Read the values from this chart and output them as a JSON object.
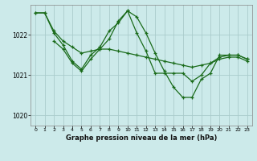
{
  "bg_color": "#cceaea",
  "grid_color": "#aacccc",
  "line_color": "#1a6b1a",
  "marker_color": "#1a6b1a",
  "title": "Graphe pression niveau de la mer (hPa)",
  "xlim": [
    -0.5,
    23.5
  ],
  "ylim": [
    1019.75,
    1022.75
  ],
  "yticks": [
    1020,
    1021,
    1022
  ],
  "xticks": [
    0,
    1,
    2,
    3,
    4,
    5,
    6,
    7,
    8,
    9,
    10,
    11,
    12,
    13,
    14,
    15,
    16,
    17,
    18,
    19,
    20,
    21,
    22,
    23
  ],
  "series": [
    {
      "x": [
        0,
        1,
        2,
        3,
        4,
        5,
        6,
        7,
        8,
        9,
        10,
        11,
        12,
        13,
        14,
        15,
        16,
        17,
        18,
        19,
        20,
        21,
        22,
        23
      ],
      "y": [
        1022.55,
        1022.55,
        1022.1,
        1021.85,
        1021.7,
        1021.55,
        1021.6,
        1021.65,
        1021.65,
        1021.6,
        1021.55,
        1021.5,
        1021.45,
        1021.4,
        1021.35,
        1021.3,
        1021.25,
        1021.2,
        1021.25,
        1021.3,
        1021.4,
        1021.45,
        1021.45,
        1021.35
      ]
    },
    {
      "x": [
        0,
        1,
        2,
        3,
        4,
        5,
        6,
        7,
        8,
        9,
        10,
        11,
        12,
        13,
        14,
        15,
        16,
        17,
        18,
        19,
        20,
        21,
        22,
        23
      ],
      "y": [
        1022.55,
        1022.55,
        1022.05,
        1021.75,
        1021.35,
        1021.15,
        1021.5,
        1021.7,
        1022.1,
        1022.3,
        1022.6,
        1022.45,
        1022.05,
        1021.55,
        1021.1,
        1020.7,
        1020.45,
        1020.45,
        1020.9,
        1021.05,
        1021.5,
        1021.5,
        1021.5,
        1021.4
      ]
    },
    {
      "x": [
        2,
        3,
        4,
        5,
        6,
        7,
        8,
        9,
        10,
        11,
        12,
        13,
        14,
        15,
        16,
        17,
        18,
        19,
        20,
        21,
        22,
        23
      ],
      "y": [
        1021.85,
        1021.65,
        1021.3,
        1021.1,
        1021.4,
        1021.65,
        1021.9,
        1022.35,
        1022.6,
        1022.05,
        1021.6,
        1021.05,
        1021.05,
        1021.05,
        1021.05,
        1020.85,
        1021.0,
        1021.3,
        1021.45,
        1021.5,
        1021.5,
        1021.4
      ]
    }
  ]
}
